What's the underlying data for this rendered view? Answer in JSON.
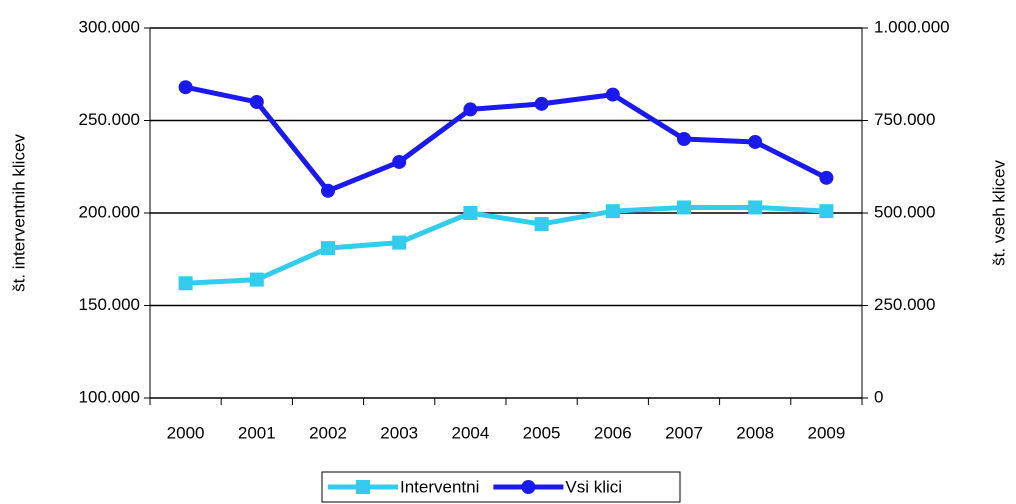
{
  "chart_data": {
    "type": "line",
    "categories": [
      "2000",
      "2001",
      "2002",
      "2003",
      "2004",
      "2005",
      "2006",
      "2007",
      "2008",
      "2009"
    ],
    "series": [
      {
        "name": "Interventni",
        "color": "#33ccee",
        "marker": "square",
        "values": [
          162000,
          164000,
          181000,
          184000,
          200000,
          194000,
          201000,
          203000,
          203000,
          201000
        ]
      },
      {
        "name": "Vsi klici",
        "color": "#1a1aee",
        "marker": "circle",
        "axis": "y2",
        "values": [
          840000,
          800000,
          560000,
          638000,
          780000,
          795000,
          820000,
          700000,
          692000,
          595000
        ]
      }
    ],
    "ylabel": "št. interventnih klicev",
    "y2label": "št. vseh klicev",
    "ylim": [
      100000,
      300000
    ],
    "yticks": [
      {
        "value": 100000,
        "label": "100.000"
      },
      {
        "value": 150000,
        "label": "150.000"
      },
      {
        "value": 200000,
        "label": "200.000"
      },
      {
        "value": 250000,
        "label": "250.000"
      },
      {
        "value": 300000,
        "label": "300.000"
      }
    ],
    "y2lim": [
      0,
      1000000
    ],
    "y2ticks": [
      0,
      {
        "value": 250000,
        "label": "250.000"
      },
      {
        "value": 500000,
        "label": "500.000"
      },
      {
        "value": 750000,
        "label": "750.000"
      },
      {
        "value": 1000000,
        "label": "1.000.000"
      }
    ],
    "grid": true,
    "legend": "bottom"
  }
}
